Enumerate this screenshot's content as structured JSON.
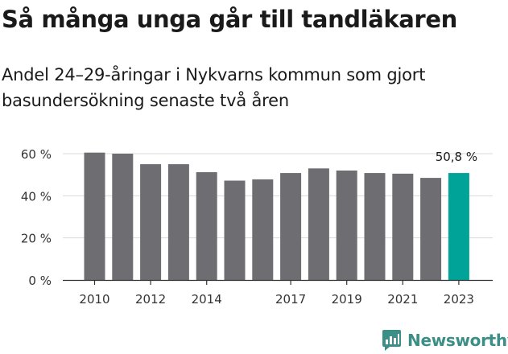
{
  "header": {
    "title": "Så många unga går till tandläkaren",
    "subtitle": "Andel 24–29-åringar i Nykvarns kommun som gjort basundersökning senaste två åren"
  },
  "chart_data": {
    "type": "bar",
    "categories": [
      "2010",
      "2011",
      "2012",
      "2013",
      "2014",
      "2015",
      "2016",
      "2017",
      "2018",
      "2019",
      "2020",
      "2021",
      "2022",
      "2023"
    ],
    "x_tick_labels": [
      "2010",
      "",
      "2012",
      "",
      "2014",
      "",
      "",
      "2017",
      "",
      "2019",
      "",
      "2021",
      "",
      "2023"
    ],
    "values": [
      60.5,
      60.0,
      55.0,
      55.0,
      51.2,
      47.2,
      47.8,
      50.8,
      53.0,
      52.0,
      50.8,
      50.5,
      48.5,
      50.8
    ],
    "highlight_index": 13,
    "highlight_label": "50,8 %",
    "yticks": [
      0,
      20,
      40,
      60
    ],
    "ytick_labels": [
      "0 %",
      "20 %",
      "40 %",
      "60 %"
    ],
    "ylim": [
      0,
      60
    ],
    "grid": true,
    "colors": {
      "bar": "#6e6d72",
      "highlight": "#00a398",
      "grid": "#d9d9d9",
      "axis": "#333333"
    }
  },
  "footer": {
    "brand": "Newsworthy",
    "brand_color": "#3b8f86"
  }
}
